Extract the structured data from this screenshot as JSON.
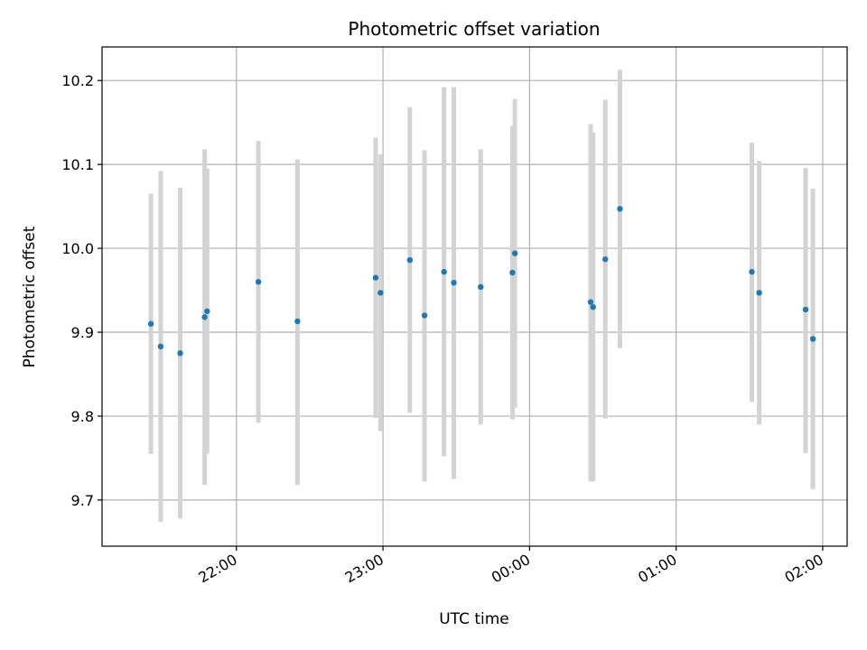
{
  "chart_data": {
    "type": "scatter",
    "title": "Photometric offset variation",
    "xlabel": "UTC time",
    "ylabel": "Photometric offset",
    "x_unit": "UTC time of day (hours, past midnight > 24)",
    "xlim": [
      "21:05",
      "02:10"
    ],
    "ylim": [
      9.645,
      10.24
    ],
    "x_ticks": [
      {
        "value": "22:00",
        "label": "22:00"
      },
      {
        "value": "23:00",
        "label": "23:00"
      },
      {
        "value": "00:00",
        "label": "00:00"
      },
      {
        "value": "01:00",
        "label": "01:00"
      },
      {
        "value": "02:00",
        "label": "02:00"
      }
    ],
    "y_ticks": [
      9.7,
      9.8,
      9.9,
      10.0,
      10.1,
      10.2
    ],
    "y_tick_labels": [
      "9.7",
      "9.8",
      "9.9",
      "10.0",
      "10.1",
      "10.2"
    ],
    "grid": true,
    "colors": {
      "point": "#1f77b4",
      "errorbar": "#d3d3d3",
      "grid": "#b0b0b0"
    },
    "points": [
      {
        "time": "21:25",
        "y": 9.91,
        "y_low": 9.755,
        "y_high": 10.065
      },
      {
        "time": "21:29",
        "y": 9.883,
        "y_low": 9.674,
        "y_high": 10.092
      },
      {
        "time": "21:37",
        "y": 9.875,
        "y_low": 9.678,
        "y_high": 10.072
      },
      {
        "time": "21:47",
        "y": 9.918,
        "y_low": 9.718,
        "y_high": 10.118
      },
      {
        "time": "21:48",
        "y": 9.925,
        "y_low": 9.755,
        "y_high": 10.095
      },
      {
        "time": "22:09",
        "y": 9.96,
        "y_low": 9.792,
        "y_high": 10.128
      },
      {
        "time": "22:25",
        "y": 9.913,
        "y_low": 9.718,
        "y_high": 10.106
      },
      {
        "time": "22:57",
        "y": 9.965,
        "y_low": 9.798,
        "y_high": 10.132
      },
      {
        "time": "22:59",
        "y": 9.947,
        "y_low": 9.782,
        "y_high": 10.112
      },
      {
        "time": "23:11",
        "y": 9.986,
        "y_low": 9.804,
        "y_high": 10.168
      },
      {
        "time": "23:17",
        "y": 9.92,
        "y_low": 9.722,
        "y_high": 10.117
      },
      {
        "time": "23:25",
        "y": 9.972,
        "y_low": 9.752,
        "y_high": 10.192
      },
      {
        "time": "23:29",
        "y": 9.959,
        "y_low": 9.725,
        "y_high": 10.192
      },
      {
        "time": "23:40",
        "y": 9.954,
        "y_low": 9.79,
        "y_high": 10.118
      },
      {
        "time": "23:53",
        "y": 9.971,
        "y_low": 9.796,
        "y_high": 10.146
      },
      {
        "time": "23:54",
        "y": 9.994,
        "y_low": 9.81,
        "y_high": 10.178
      },
      {
        "time": "00:25",
        "y": 9.936,
        "y_low": 9.722,
        "y_high": 10.148
      },
      {
        "time": "00:26",
        "y": 9.93,
        "y_low": 9.722,
        "y_high": 10.138
      },
      {
        "time": "00:31",
        "y": 9.987,
        "y_low": 9.797,
        "y_high": 10.177
      },
      {
        "time": "00:37",
        "y": 10.047,
        "y_low": 9.881,
        "y_high": 10.213
      },
      {
        "time": "01:31",
        "y": 9.972,
        "y_low": 9.817,
        "y_high": 10.126
      },
      {
        "time": "01:34",
        "y": 9.947,
        "y_low": 9.79,
        "y_high": 10.104
      },
      {
        "time": "01:53",
        "y": 9.927,
        "y_low": 9.756,
        "y_high": 10.096
      },
      {
        "time": "01:56",
        "y": 9.892,
        "y_low": 9.713,
        "y_high": 10.071
      }
    ]
  }
}
